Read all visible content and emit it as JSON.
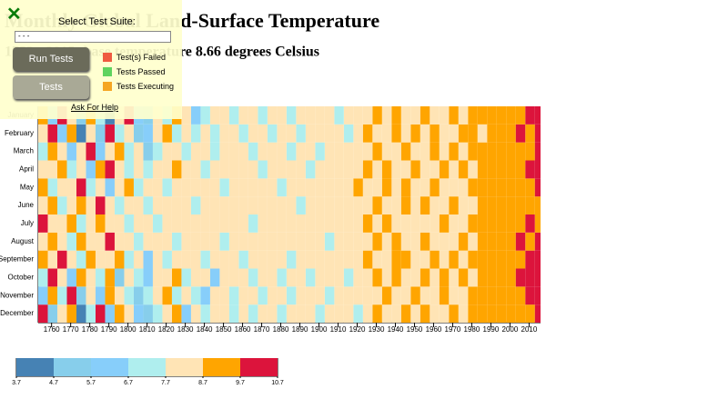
{
  "chart_data": {
    "type": "heatmap",
    "title": "Monthly Global Land-Surface Temperature",
    "subtitle": "1753 - 2015: base temperature 8.66 degrees Celsius",
    "categories": [
      "January",
      "February",
      "March",
      "April",
      "May",
      "June",
      "July",
      "August",
      "September",
      "October",
      "November",
      "December"
    ],
    "x": [
      1753,
      1758,
      1763,
      1768,
      1773,
      1778,
      1783,
      1788,
      1793,
      1798,
      1803,
      1808,
      1813,
      1818,
      1823,
      1828,
      1833,
      1838,
      1843,
      1848,
      1853,
      1858,
      1863,
      1868,
      1873,
      1878,
      1883,
      1888,
      1893,
      1898,
      1903,
      1908,
      1913,
      1918,
      1923,
      1928,
      1933,
      1938,
      1943,
      1948,
      1953,
      1958,
      1963,
      1968,
      1973,
      1978,
      1983,
      1988,
      1993,
      1998,
      2003,
      2008,
      2013
    ],
    "values": [
      [
        9.2,
        6.2,
        10.2,
        8.2,
        5.2,
        9.2,
        7.2,
        4.2,
        8.2,
        10.2,
        6.2,
        5.2,
        8.2,
        7.2,
        9.2,
        8.2,
        6.2,
        7.2,
        8.2,
        8.2,
        7.2,
        8.2,
        8.2,
        7.2,
        8.2,
        8.2,
        7.2,
        8.2,
        8.2,
        8.2,
        8.2,
        7.2,
        8.2,
        8.2,
        8.2,
        9.2,
        8.2,
        9.2,
        8.2,
        8.2,
        9.2,
        8.2,
        8.2,
        9.2,
        8.2,
        9.2,
        9.2,
        9.2,
        9.2,
        9.2,
        9.2,
        10.2,
        10.2
      ],
      [
        8.2,
        10.2,
        6.2,
        9.2,
        4.2,
        8.2,
        5.2,
        10.2,
        7.2,
        8.2,
        5.2,
        6.2,
        8.2,
        9.2,
        7.2,
        8.2,
        7.2,
        8.2,
        7.2,
        8.2,
        8.2,
        7.2,
        8.2,
        8.2,
        7.2,
        8.2,
        8.2,
        7.2,
        8.2,
        8.2,
        8.2,
        8.2,
        7.2,
        8.2,
        9.2,
        8.2,
        8.2,
        9.2,
        8.2,
        9.2,
        8.2,
        9.2,
        8.2,
        8.2,
        9.2,
        9.2,
        8.2,
        9.2,
        9.2,
        9.2,
        10.2,
        9.2,
        10.2
      ],
      [
        7.2,
        9.2,
        8.2,
        6.2,
        8.2,
        10.2,
        6.2,
        8.2,
        9.2,
        7.2,
        8.2,
        5.2,
        7.2,
        8.2,
        8.2,
        7.2,
        8.2,
        8.2,
        7.2,
        8.2,
        8.2,
        8.2,
        7.2,
        8.2,
        8.2,
        8.2,
        7.2,
        8.2,
        8.2,
        7.2,
        8.2,
        8.2,
        8.2,
        8.2,
        8.2,
        9.2,
        8.2,
        8.2,
        9.2,
        8.2,
        8.2,
        9.2,
        8.2,
        9.2,
        8.2,
        9.2,
        9.2,
        9.2,
        9.2,
        9.2,
        9.2,
        9.2,
        10.2
      ],
      [
        8.2,
        8.2,
        9.2,
        7.2,
        8.2,
        6.2,
        9.2,
        10.2,
        8.2,
        7.2,
        8.2,
        7.2,
        8.2,
        8.2,
        9.2,
        8.2,
        8.2,
        7.2,
        8.2,
        8.2,
        8.2,
        8.2,
        8.2,
        7.2,
        8.2,
        8.2,
        8.2,
        8.2,
        7.2,
        8.2,
        8.2,
        8.2,
        8.2,
        8.2,
        9.2,
        8.2,
        9.2,
        8.2,
        8.2,
        9.2,
        8.2,
        8.2,
        9.2,
        8.2,
        9.2,
        8.2,
        9.2,
        9.2,
        9.2,
        9.2,
        9.2,
        10.2,
        10.2
      ],
      [
        9.2,
        7.2,
        8.2,
        8.2,
        10.2,
        7.2,
        8.2,
        6.2,
        8.2,
        9.2,
        7.2,
        8.2,
        8.2,
        7.2,
        8.2,
        8.2,
        8.2,
        8.2,
        8.2,
        7.2,
        8.2,
        8.2,
        8.2,
        8.2,
        8.2,
        7.2,
        8.2,
        8.2,
        8.2,
        8.2,
        8.2,
        8.2,
        8.2,
        9.2,
        8.2,
        8.2,
        9.2,
        8.2,
        9.2,
        8.2,
        8.2,
        9.2,
        8.2,
        8.2,
        8.2,
        9.2,
        9.2,
        9.2,
        9.2,
        9.2,
        9.2,
        9.2,
        10.2
      ],
      [
        8.2,
        9.2,
        7.2,
        8.2,
        9.2,
        8.2,
        10.2,
        8.2,
        7.2,
        8.2,
        8.2,
        7.2,
        8.2,
        8.2,
        8.2,
        8.2,
        7.2,
        8.2,
        8.2,
        8.2,
        8.2,
        8.2,
        8.2,
        8.2,
        8.2,
        8.2,
        8.2,
        7.2,
        8.2,
        8.2,
        8.2,
        8.2,
        8.2,
        8.2,
        8.2,
        9.2,
        8.2,
        8.2,
        9.2,
        8.2,
        9.2,
        8.2,
        8.2,
        9.2,
        8.2,
        8.2,
        9.2,
        9.2,
        9.2,
        9.2,
        9.2,
        9.2,
        9.2
      ],
      [
        10.2,
        8.2,
        8.2,
        9.2,
        7.2,
        8.2,
        9.2,
        8.2,
        8.2,
        7.2,
        8.2,
        8.2,
        7.2,
        8.2,
        8.2,
        8.2,
        8.2,
        8.2,
        8.2,
        8.2,
        8.2,
        8.2,
        7.2,
        8.2,
        8.2,
        8.2,
        8.2,
        8.2,
        8.2,
        8.2,
        8.2,
        8.2,
        8.2,
        8.2,
        9.2,
        8.2,
        9.2,
        8.2,
        8.2,
        8.2,
        8.2,
        8.2,
        9.2,
        8.2,
        8.2,
        9.2,
        9.2,
        9.2,
        9.2,
        9.2,
        9.2,
        10.2,
        9.2
      ],
      [
        8.2,
        9.2,
        8.2,
        7.2,
        9.2,
        8.2,
        8.2,
        10.2,
        8.2,
        8.2,
        7.2,
        8.2,
        8.2,
        8.2,
        7.2,
        8.2,
        8.2,
        8.2,
        8.2,
        7.2,
        8.2,
        8.2,
        8.2,
        8.2,
        8.2,
        8.2,
        8.2,
        8.2,
        8.2,
        8.2,
        7.2,
        8.2,
        8.2,
        8.2,
        8.2,
        9.2,
        8.2,
        9.2,
        8.2,
        8.2,
        9.2,
        8.2,
        8.2,
        8.2,
        9.2,
        8.2,
        9.2,
        9.2,
        9.2,
        9.2,
        10.2,
        9.2,
        10.2
      ],
      [
        9.2,
        8.2,
        10.2,
        8.2,
        7.2,
        9.2,
        8.2,
        8.2,
        9.2,
        7.2,
        8.2,
        6.2,
        8.2,
        7.2,
        8.2,
        8.2,
        8.2,
        7.2,
        8.2,
        8.2,
        8.2,
        7.2,
        8.2,
        8.2,
        8.2,
        8.2,
        7.2,
        8.2,
        8.2,
        8.2,
        8.2,
        8.2,
        8.2,
        8.2,
        9.2,
        8.2,
        8.2,
        9.2,
        9.2,
        8.2,
        8.2,
        9.2,
        8.2,
        9.2,
        8.2,
        9.2,
        9.2,
        9.2,
        9.2,
        9.2,
        9.2,
        10.2,
        10.2
      ],
      [
        7.2,
        10.2,
        8.2,
        6.2,
        9.2,
        8.2,
        7.2,
        9.2,
        5.2,
        8.2,
        7.2,
        6.2,
        8.2,
        8.2,
        9.2,
        7.2,
        8.2,
        8.2,
        6.2,
        8.2,
        8.2,
        8.2,
        7.2,
        8.2,
        8.2,
        7.2,
        8.2,
        8.2,
        7.2,
        8.2,
        8.2,
        8.2,
        7.2,
        8.2,
        8.2,
        9.2,
        8.2,
        9.2,
        8.2,
        8.2,
        9.2,
        8.2,
        9.2,
        8.2,
        9.2,
        8.2,
        9.2,
        9.2,
        9.2,
        9.2,
        10.2,
        10.2,
        10.2
      ],
      [
        6.2,
        9.2,
        7.2,
        10.2,
        5.2,
        8.2,
        6.2,
        9.2,
        8.2,
        7.2,
        5.2,
        7.2,
        8.2,
        9.2,
        7.2,
        8.2,
        7.2,
        6.2,
        8.2,
        8.2,
        7.2,
        8.2,
        8.2,
        7.2,
        8.2,
        8.2,
        7.2,
        8.2,
        8.2,
        8.2,
        7.2,
        8.2,
        8.2,
        8.2,
        8.2,
        8.2,
        9.2,
        8.2,
        8.2,
        9.2,
        8.2,
        8.2,
        9.2,
        8.2,
        8.2,
        9.2,
        9.2,
        9.2,
        9.2,
        9.2,
        9.2,
        10.2,
        10.2
      ],
      [
        10.2,
        5.2,
        8.2,
        9.2,
        4.2,
        7.2,
        10.2,
        6.2,
        9.2,
        8.2,
        6.2,
        5.2,
        7.2,
        8.2,
        9.2,
        6.2,
        8.2,
        7.2,
        8.2,
        8.2,
        7.2,
        8.2,
        7.2,
        8.2,
        8.2,
        7.2,
        8.2,
        8.2,
        8.2,
        7.2,
        8.2,
        8.2,
        8.2,
        7.2,
        8.2,
        9.2,
        8.2,
        8.2,
        9.2,
        8.2,
        9.2,
        8.2,
        8.2,
        9.2,
        8.2,
        9.2,
        9.2,
        9.2,
        9.2,
        9.2,
        9.2,
        9.2,
        10.2
      ]
    ],
    "xlim": [
      1753,
      2016
    ],
    "xticks": [
      1760,
      1770,
      1780,
      1790,
      1800,
      1810,
      1820,
      1830,
      1840,
      1850,
      1860,
      1870,
      1880,
      1890,
      1900,
      1910,
      1920,
      1930,
      1940,
      1950,
      1960,
      1970,
      1980,
      1990,
      2000,
      2010
    ],
    "thresholds": [
      3.7,
      4.7,
      5.7,
      6.7,
      7.7,
      8.7,
      9.7,
      10.7
    ],
    "colors": [
      "#4682b4",
      "#87ceeb",
      "#87cefa",
      "#afeeee",
      "#ffe4b5",
      "#ffa500",
      "#dc143c"
    ]
  },
  "ui": {
    "suite_label": "Select Test Suite:",
    "select_value": "- - -",
    "run_button": "Run Tests",
    "tests_button": "Tests",
    "legend": [
      {
        "label": "Test(s) Failed",
        "color": "#ef5a41"
      },
      {
        "label": "Tests Passed",
        "color": "#5fd35f"
      },
      {
        "label": "Tests Executing",
        "color": "#f5a623"
      }
    ],
    "help": "Ask For Help"
  }
}
